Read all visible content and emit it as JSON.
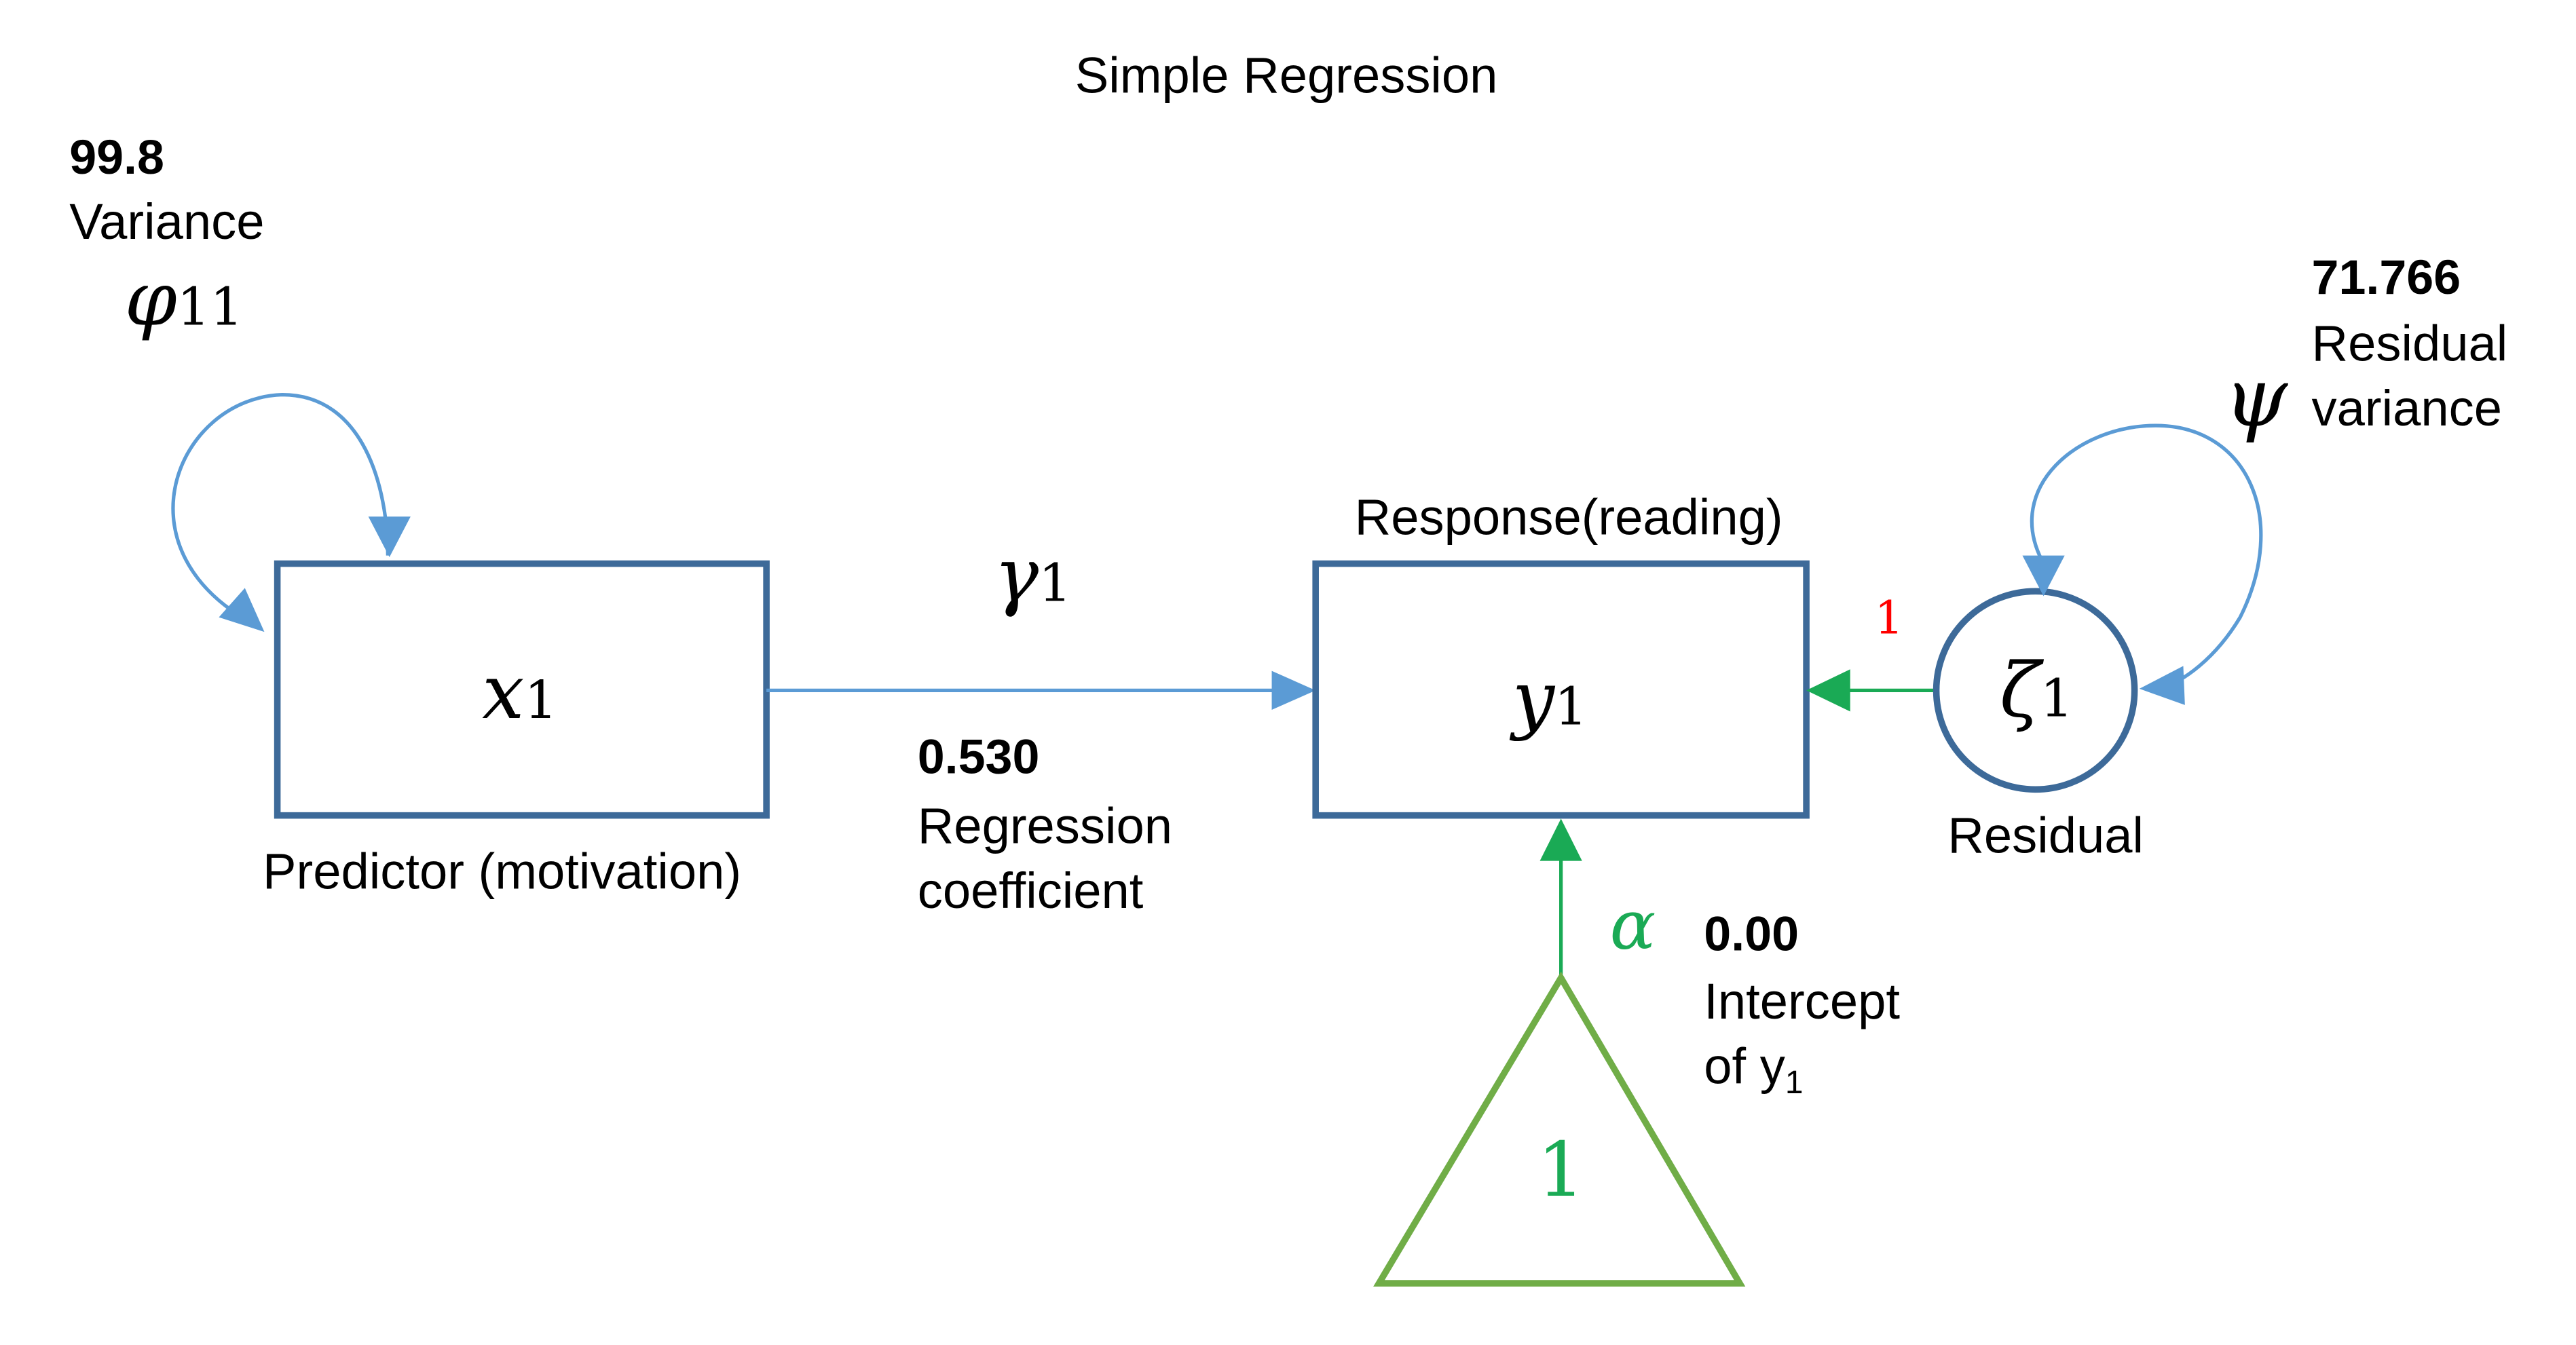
{
  "title": "Simple Regression",
  "colors": {
    "box_stroke": "#3d6a99",
    "blue_path": "#5b9bd5",
    "green": "#1aaa55",
    "triangle": "#70ad47",
    "red": "#ff0000",
    "text": "#000000"
  },
  "predictor": {
    "variable": "x",
    "subscript": "1",
    "caption": "Predictor (motivation)",
    "variance_value": "99.8",
    "variance_label": "Variance",
    "variance_symbol": "φ",
    "variance_symbol_subscript": "11"
  },
  "response": {
    "variable": "y",
    "subscript": "1",
    "caption": "Response(reading)"
  },
  "regression_path": {
    "symbol": "γ",
    "subscript": "1",
    "value": "0.530",
    "label_line1": "Regression",
    "label_line2": "coefficient"
  },
  "residual": {
    "symbol": "ζ",
    "subscript": "1",
    "caption": "Residual",
    "loading": "1",
    "variance_value": "71.766",
    "variance_label_line1": "Residual",
    "variance_label_line2": "variance",
    "variance_symbol": "ψ"
  },
  "intercept": {
    "constant": "1",
    "symbol": "α",
    "value": "0.00",
    "label_line1": "Intercept",
    "label_line2_prefix": "of y",
    "label_line2_subscript": "1"
  }
}
